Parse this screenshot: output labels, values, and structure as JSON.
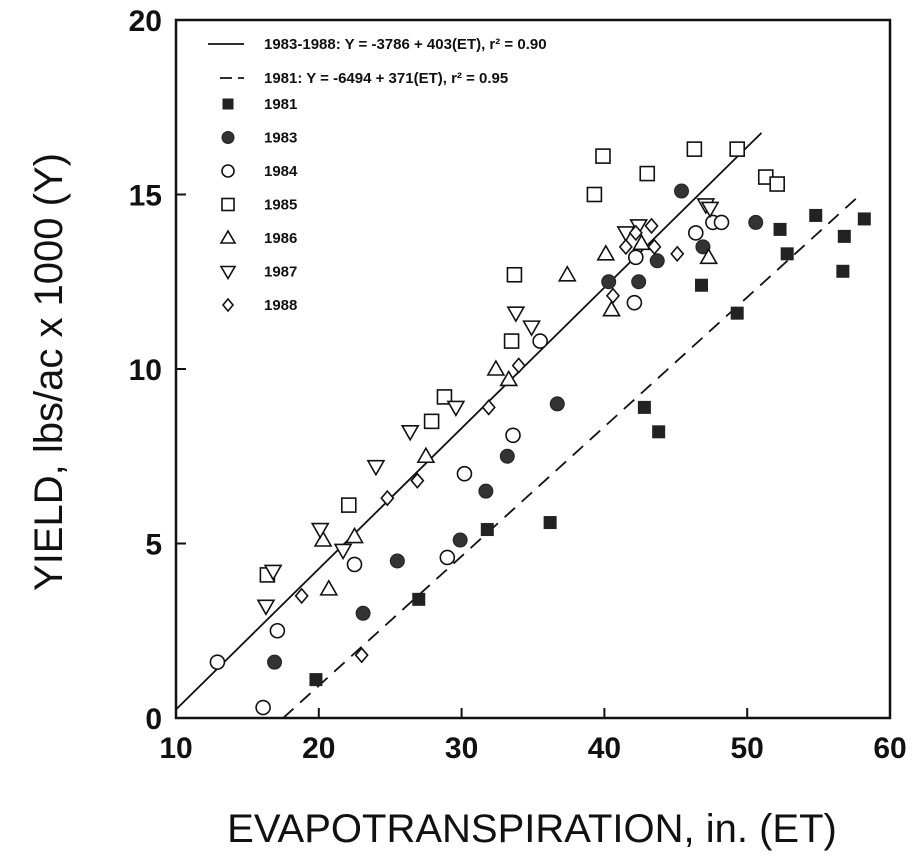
{
  "chart_data": {
    "type": "scatter",
    "xlabel": "EVAPOTRANSPIRATION, in. (ET)",
    "ylabel": "YIELD, lbs/ac x 1000 (Y)",
    "xlim": [
      10,
      60
    ],
    "ylim": [
      0,
      20
    ],
    "xticks": [
      10,
      20,
      30,
      40,
      50,
      60
    ],
    "yticks": [
      0,
      5,
      10,
      15,
      20
    ],
    "legend_position": "top-left",
    "grid": false,
    "lines": [
      {
        "label": "1983-1988: Y = -3786 + 403(ET), r² = 0.90",
        "style": "solid",
        "intercept": -3786,
        "slope": 403,
        "x_range": [
          10,
          51
        ]
      },
      {
        "label": "1981: Y = -6494 + 371(ET), r² = 0.95",
        "style": "dashed",
        "intercept": -6494,
        "slope": 371,
        "x_range": [
          17.5,
          58
        ]
      }
    ],
    "series": [
      {
        "name": "1981",
        "marker": "square-filled",
        "points": [
          [
            19.8,
            1.1
          ],
          [
            27.0,
            3.4
          ],
          [
            31.8,
            5.4
          ],
          [
            36.2,
            5.6
          ],
          [
            42.8,
            8.9
          ],
          [
            43.8,
            8.2
          ],
          [
            46.8,
            12.4
          ],
          [
            49.3,
            11.6
          ],
          [
            52.3,
            14.0
          ],
          [
            52.8,
            13.3
          ],
          [
            54.8,
            14.4
          ],
          [
            56.7,
            12.8
          ],
          [
            56.8,
            13.8
          ],
          [
            58.2,
            14.3
          ]
        ]
      },
      {
        "name": "1983",
        "marker": "circle-filled",
        "points": [
          [
            16.9,
            1.6
          ],
          [
            23.1,
            3.0
          ],
          [
            25.5,
            4.5
          ],
          [
            29.9,
            5.1
          ],
          [
            31.7,
            6.5
          ],
          [
            33.2,
            7.5
          ],
          [
            36.7,
            9.0
          ],
          [
            40.3,
            12.5
          ],
          [
            42.4,
            12.5
          ],
          [
            43.7,
            13.1
          ],
          [
            45.4,
            15.1
          ],
          [
            46.9,
            13.5
          ],
          [
            50.6,
            14.2
          ]
        ]
      },
      {
        "name": "1984",
        "marker": "circle-open",
        "points": [
          [
            12.9,
            1.6
          ],
          [
            16.1,
            0.3
          ],
          [
            17.1,
            2.5
          ],
          [
            22.5,
            4.4
          ],
          [
            29.0,
            4.6
          ],
          [
            30.2,
            7.0
          ],
          [
            33.6,
            8.1
          ],
          [
            35.5,
            10.8
          ],
          [
            42.1,
            11.9
          ],
          [
            42.2,
            13.2
          ],
          [
            46.4,
            13.9
          ],
          [
            47.6,
            14.2
          ],
          [
            48.2,
            14.2
          ]
        ]
      },
      {
        "name": "1985",
        "marker": "square-open",
        "points": [
          [
            16.4,
            4.1
          ],
          [
            22.1,
            6.1
          ],
          [
            27.9,
            8.5
          ],
          [
            28.8,
            9.2
          ],
          [
            33.5,
            10.8
          ],
          [
            33.7,
            12.7
          ],
          [
            39.3,
            15.0
          ],
          [
            39.9,
            16.1
          ],
          [
            43.0,
            15.6
          ],
          [
            46.3,
            16.3
          ],
          [
            49.3,
            16.3
          ],
          [
            51.3,
            15.5
          ],
          [
            52.1,
            15.3
          ]
        ]
      },
      {
        "name": "1986",
        "marker": "triangle-up-open",
        "points": [
          [
            20.3,
            5.1
          ],
          [
            20.7,
            3.7
          ],
          [
            22.5,
            5.2
          ],
          [
            27.5,
            7.5
          ],
          [
            32.4,
            10.0
          ],
          [
            33.3,
            9.7
          ],
          [
            37.4,
            12.7
          ],
          [
            40.1,
            13.3
          ],
          [
            40.5,
            11.7
          ],
          [
            42.6,
            13.6
          ],
          [
            47.3,
            13.2
          ]
        ]
      },
      {
        "name": "1987",
        "marker": "triangle-down-open",
        "points": [
          [
            16.3,
            3.2
          ],
          [
            16.8,
            4.2
          ],
          [
            20.1,
            5.4
          ],
          [
            21.7,
            4.8
          ],
          [
            24.0,
            7.2
          ],
          [
            26.4,
            8.2
          ],
          [
            29.6,
            8.9
          ],
          [
            33.8,
            11.6
          ],
          [
            34.9,
            11.2
          ],
          [
            41.5,
            13.9
          ],
          [
            42.4,
            14.1
          ],
          [
            47.1,
            14.7
          ],
          [
            47.4,
            14.6
          ]
        ]
      },
      {
        "name": "1988",
        "marker": "diamond-open",
        "points": [
          [
            18.8,
            3.5
          ],
          [
            23.0,
            1.8
          ],
          [
            24.8,
            6.3
          ],
          [
            26.9,
            6.8
          ],
          [
            31.9,
            8.9
          ],
          [
            34.0,
            10.1
          ],
          [
            40.6,
            12.1
          ],
          [
            41.5,
            13.5
          ],
          [
            42.2,
            13.9
          ],
          [
            43.3,
            14.1
          ],
          [
            43.5,
            13.5
          ],
          [
            45.1,
            13.3
          ]
        ]
      }
    ]
  }
}
